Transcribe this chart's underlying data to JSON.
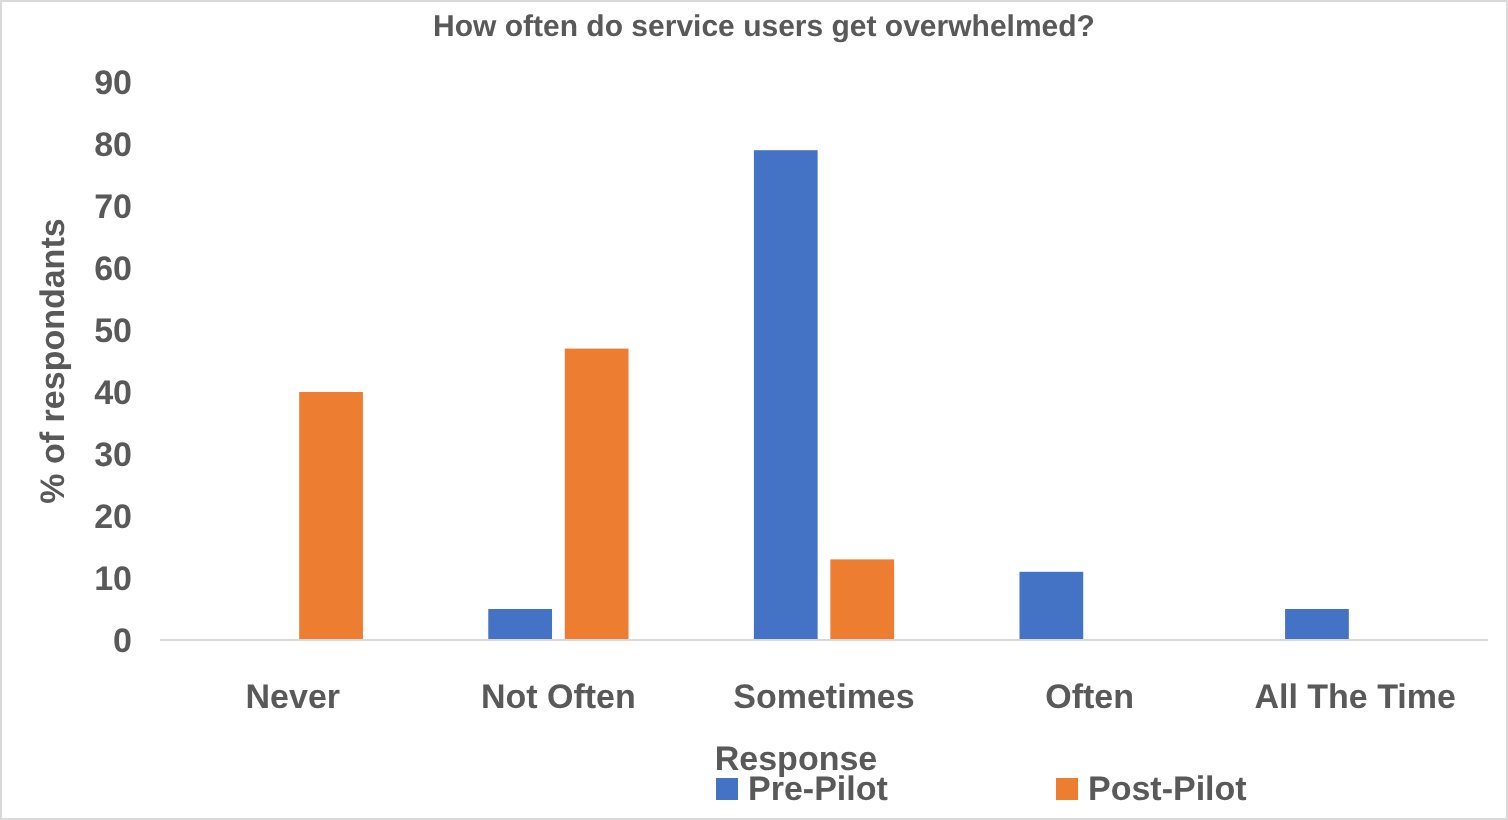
{
  "chart_data": {
    "type": "bar",
    "title": "How often do service users get overwhelmed?",
    "xlabel": "Response",
    "ylabel": "% of respondants",
    "categories": [
      "Never",
      "Not Often",
      "Sometimes",
      "Often",
      "All The Time"
    ],
    "series": [
      {
        "name": "Pre-Pilot",
        "color": "#4472c4",
        "values": [
          0,
          5,
          79,
          11,
          5
        ]
      },
      {
        "name": "Post-Pilot",
        "color": "#ed7d31",
        "values": [
          40,
          47,
          13,
          0,
          0
        ]
      }
    ],
    "ylim": [
      0,
      90
    ],
    "yticks": [
      0,
      10,
      20,
      30,
      40,
      50,
      60,
      70,
      80,
      90
    ],
    "grid": false,
    "legend": "bottom"
  }
}
